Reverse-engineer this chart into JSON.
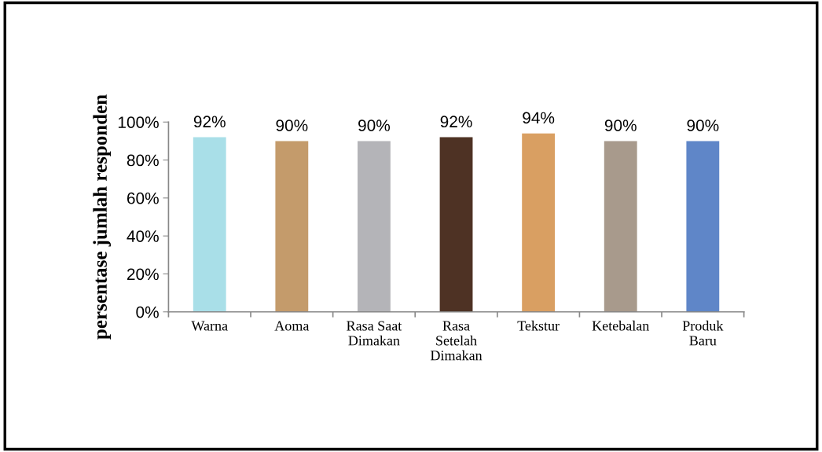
{
  "chart_data": {
    "type": "bar",
    "ylabel": "persentase jumlah responden",
    "categories": [
      "Warna",
      "Aoma",
      "Rasa Saat\nDimakan",
      "Rasa\nSetelah\nDimakan",
      "Tekstur",
      "Ketebalan",
      "Produk\nBaru"
    ],
    "values": [
      92,
      90,
      90,
      92,
      94,
      90,
      90
    ],
    "colors": [
      "#a9dfe8",
      "#c49b6b",
      "#b4b4b8",
      "#4e3224",
      "#d99f62",
      "#a89a8c",
      "#5f86c8"
    ],
    "value_labels": [
      "92%",
      "90%",
      "90%",
      "92%",
      "94%",
      "90%",
      "90%"
    ],
    "ylim": [
      0,
      100
    ],
    "yticks": [
      {
        "value": 0,
        "label": "0%"
      },
      {
        "value": 20,
        "label": "20%"
      },
      {
        "value": 40,
        "label": "40%"
      },
      {
        "value": 60,
        "label": "60%"
      },
      {
        "value": 80,
        "label": "80%"
      },
      {
        "value": 100,
        "label": "100%"
      }
    ],
    "grid": false,
    "legend": false
  }
}
